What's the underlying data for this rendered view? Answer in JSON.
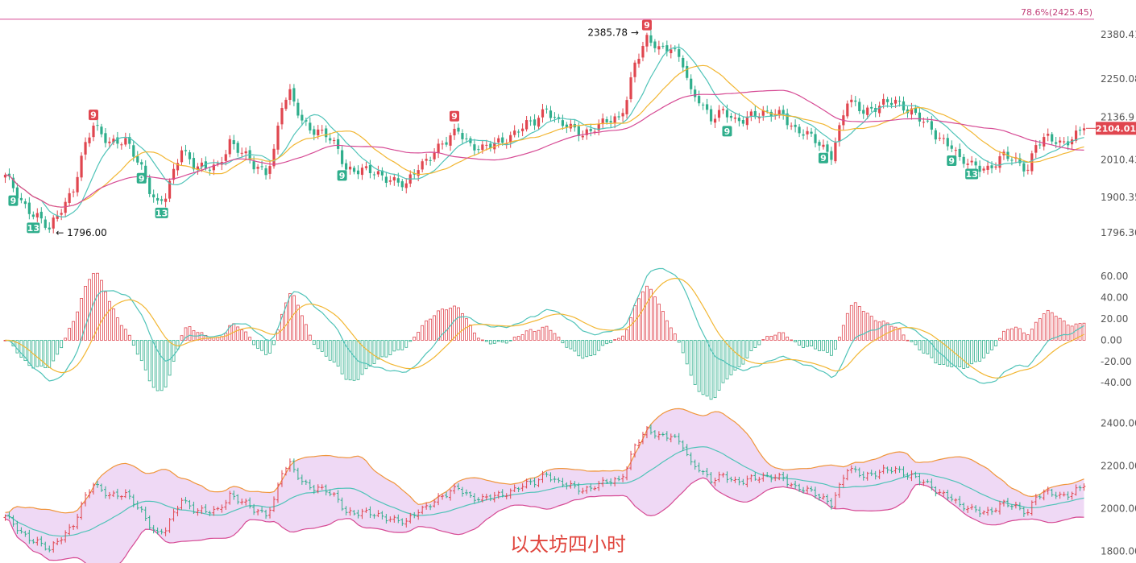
{
  "caption": "以太坊四小时",
  "colors": {
    "up": "#e0464f",
    "down": "#2fae8c",
    "ma_fast": "#4fc3b8",
    "ma_mid": "#f2b632",
    "ma_slow": "#d64a94",
    "fib": "#d64a94",
    "dif": "#4fc3b8",
    "dea": "#f2b632",
    "boll_upper": "#f0953a",
    "boll_mid": "#4fc3b8",
    "boll_lower": "#d64a94",
    "boll_fill": "#efd9f5"
  },
  "chart_data": [
    {
      "type": "candlestick",
      "fib_level": {
        "label": "78.6%(2425.45)",
        "value": 2425.45
      },
      "last_price": {
        "label": "2104.01",
        "value": 2104.01
      },
      "high_annotation": {
        "label": "2385.78",
        "value": 2385.78
      },
      "low_annotation": {
        "label": "1796.00",
        "value": 1796.0
      },
      "y_ticks": [
        {
          "label": "2380.41",
          "value": 2380.41
        },
        {
          "label": "2250.08",
          "value": 2250.08
        },
        {
          "label": "2136.9",
          "value": 2136.9
        },
        {
          "label": "2010.43",
          "value": 2010.43
        },
        {
          "label": "1900.35",
          "value": 1900.35
        },
        {
          "label": "1796.30",
          "value": 1796.3
        }
      ],
      "ylim": [
        1770,
        2430
      ],
      "anchors": [
        [
          0,
          1960
        ],
        [
          4,
          1890
        ],
        [
          8,
          1845
        ],
        [
          11,
          1800
        ],
        [
          14,
          1870
        ],
        [
          17,
          1930
        ],
        [
          20,
          2050
        ],
        [
          22,
          2110
        ],
        [
          26,
          2070
        ],
        [
          30,
          2060
        ],
        [
          34,
          1990
        ],
        [
          36,
          1930
        ],
        [
          38,
          1880
        ],
        [
          40,
          1900
        ],
        [
          42,
          1970
        ],
        [
          44,
          2050
        ],
        [
          47,
          2000
        ],
        [
          50,
          1980
        ],
        [
          53,
          1990
        ],
        [
          56,
          2070
        ],
        [
          59,
          2030
        ],
        [
          62,
          1990
        ],
        [
          65,
          1980
        ],
        [
          67,
          2040
        ],
        [
          69,
          2170
        ],
        [
          71,
          2200
        ],
        [
          74,
          2130
        ],
        [
          77,
          2100
        ],
        [
          80,
          2080
        ],
        [
          83,
          2040
        ],
        [
          85,
          1990
        ],
        [
          88,
          1980
        ],
        [
          92,
          1970
        ],
        [
          96,
          1960
        ],
        [
          100,
          1930
        ],
        [
          103,
          1990
        ],
        [
          107,
          2040
        ],
        [
          110,
          2060
        ],
        [
          113,
          2100
        ],
        [
          116,
          2060
        ],
        [
          119,
          2040
        ],
        [
          121,
          2050
        ],
        [
          124,
          2070
        ],
        [
          128,
          2100
        ],
        [
          132,
          2120
        ],
        [
          135,
          2170
        ],
        [
          138,
          2120
        ],
        [
          141,
          2100
        ],
        [
          144,
          2090
        ],
        [
          147,
          2110
        ],
        [
          150,
          2120
        ],
        [
          153,
          2130
        ],
        [
          155,
          2200
        ],
        [
          157,
          2300
        ],
        [
          160,
          2360
        ],
        [
          163,
          2340
        ],
        [
          166,
          2350
        ],
        [
          169,
          2290
        ],
        [
          171,
          2200
        ],
        [
          173,
          2190
        ],
        [
          176,
          2140
        ],
        [
          179,
          2150
        ],
        [
          182,
          2120
        ],
        [
          186,
          2150
        ],
        [
          190,
          2140
        ],
        [
          194,
          2150
        ],
        [
          197,
          2100
        ],
        [
          200,
          2080
        ],
        [
          203,
          2060
        ],
        [
          206,
          2030
        ],
        [
          208,
          2100
        ],
        [
          210,
          2180
        ],
        [
          214,
          2160
        ],
        [
          218,
          2170
        ],
        [
          222,
          2180
        ],
        [
          226,
          2160
        ],
        [
          229,
          2120
        ],
        [
          232,
          2080
        ],
        [
          236,
          2060
        ],
        [
          238,
          2010
        ],
        [
          241,
          1990
        ],
        [
          245,
          1990
        ],
        [
          249,
          2020
        ],
        [
          253,
          2000
        ],
        [
          255,
          1990
        ],
        [
          257,
          2060
        ],
        [
          260,
          2070
        ],
        [
          263,
          2060
        ],
        [
          266,
          2080
        ],
        [
          269,
          2104
        ]
      ],
      "td_badges": [
        {
          "label": "9",
          "bar": 2,
          "pos": "below",
          "tone": "down"
        },
        {
          "label": "13",
          "bar": 7,
          "pos": "below",
          "tone": "down"
        },
        {
          "label": "9",
          "bar": 22,
          "pos": "above",
          "tone": "up"
        },
        {
          "label": "9",
          "bar": 34,
          "pos": "below",
          "tone": "down"
        },
        {
          "label": "13",
          "bar": 39,
          "pos": "below",
          "tone": "down"
        },
        {
          "label": "9",
          "bar": 84,
          "pos": "below",
          "tone": "down"
        },
        {
          "label": "9",
          "bar": 112,
          "pos": "above",
          "tone": "up"
        },
        {
          "label": "9",
          "bar": 160,
          "pos": "above",
          "tone": "up"
        },
        {
          "label": "9",
          "bar": 180,
          "pos": "below",
          "tone": "down"
        },
        {
          "label": "9",
          "bar": 204,
          "pos": "below",
          "tone": "down"
        },
        {
          "label": "9",
          "bar": 236,
          "pos": "below",
          "tone": "down"
        },
        {
          "label": "13",
          "bar": 241,
          "pos": "below",
          "tone": "down"
        }
      ]
    },
    {
      "type": "macd",
      "y_ticks": [
        {
          "label": "60.00",
          "value": 60
        },
        {
          "label": "40.00",
          "value": 40
        },
        {
          "label": "20.00",
          "value": 20
        },
        {
          "label": "0.00",
          "value": 0
        },
        {
          "label": "-20.00",
          "value": -20
        },
        {
          "label": "-40.00",
          "value": -40
        }
      ],
      "ylim": [
        -55,
        70
      ]
    },
    {
      "type": "bollinger",
      "y_ticks": [
        {
          "label": "2400.00",
          "value": 2400
        },
        {
          "label": "2200.00",
          "value": 2200
        },
        {
          "label": "2000.00",
          "value": 2000
        },
        {
          "label": "1800.00",
          "value": 1800
        }
      ],
      "ylim": [
        1780,
        2450
      ]
    }
  ]
}
